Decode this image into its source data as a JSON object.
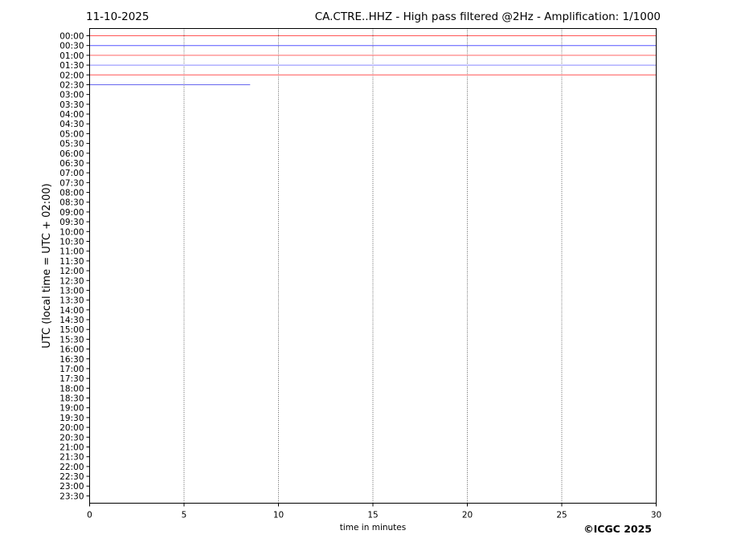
{
  "chart_data": {
    "type": "line",
    "date": "11-10-2025",
    "title": "CA.CTRE..HHZ - High pass filtered @2Hz - Amplification: 1/1000",
    "xlabel": "time in minutes",
    "ylabel": "UTC (local time = UTC + 02:00)",
    "xlim": [
      0,
      30
    ],
    "xticks": [
      0,
      5,
      10,
      15,
      20,
      25,
      30
    ],
    "grid": "vertical dotted at x ticks",
    "yticks": [
      "00:00",
      "00:30",
      "01:00",
      "01:30",
      "02:00",
      "02:30",
      "03:00",
      "03:30",
      "04:00",
      "04:30",
      "05:00",
      "05:30",
      "06:00",
      "06:30",
      "07:00",
      "07:30",
      "08:00",
      "08:30",
      "09:00",
      "09:30",
      "10:00",
      "10:30",
      "11:00",
      "11:30",
      "12:00",
      "12:30",
      "13:00",
      "13:30",
      "14:00",
      "14:30",
      "15:00",
      "15:30",
      "16:00",
      "16:30",
      "17:00",
      "17:30",
      "18:00",
      "18:30",
      "19:00",
      "19:30",
      "20:00",
      "20:30",
      "21:00",
      "21:30",
      "22:00",
      "22:30",
      "23:00",
      "23:30"
    ],
    "traces": [
      {
        "row": "00:00",
        "start_min": 0,
        "end_min": 30,
        "color": "#ff5555"
      },
      {
        "row": "00:30",
        "start_min": 0,
        "end_min": 30,
        "color": "#5555ff"
      },
      {
        "row": "01:00",
        "start_min": 0,
        "end_min": 30,
        "color": "#ff6666"
      },
      {
        "row": "01:30",
        "start_min": 0,
        "end_min": 30,
        "color": "#8888ff"
      },
      {
        "row": "02:00",
        "start_min": 0,
        "end_min": 30,
        "color": "#ff5555"
      },
      {
        "row": "02:30",
        "start_min": 0,
        "end_min": 8.5,
        "color": "#6666ee"
      }
    ]
  },
  "copyright": "©ICGC 2025"
}
